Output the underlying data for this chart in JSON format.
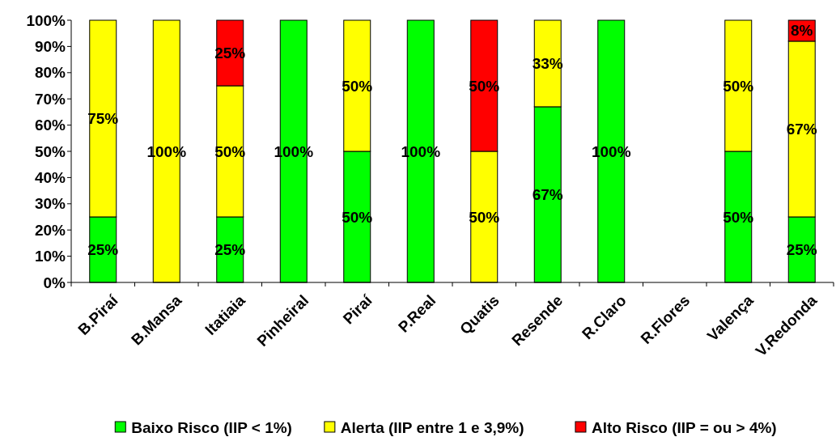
{
  "chart_data": {
    "type": "bar",
    "stacked": true,
    "categories": [
      "B.Piraí",
      "B.Mansa",
      "Itatiaia",
      "Pinheiral",
      "Piraí",
      "P.Real",
      "Quatis",
      "Resende",
      "R.Claro",
      "R.Flores",
      "Valença",
      "V.Redonda"
    ],
    "series": [
      {
        "name": "Baixo Risco (IIP < 1%)",
        "color": "#00ff00",
        "values": [
          25,
          0,
          25,
          100,
          50,
          100,
          0,
          67,
          100,
          0,
          50,
          25
        ],
        "value_labels": [
          "25%",
          null,
          "25%",
          "100%",
          "50%",
          "100%",
          null,
          "67%",
          "100%",
          null,
          "50%",
          "25%"
        ]
      },
      {
        "name": "Alerta (IIP entre 1 e 3,9%)",
        "color": "#ffff00",
        "values": [
          75,
          100,
          50,
          0,
          50,
          0,
          50,
          33,
          0,
          0,
          50,
          67
        ],
        "value_labels": [
          "75%",
          "100%",
          "50%",
          null,
          "50%",
          null,
          "50%",
          "33%",
          null,
          null,
          "50%",
          "67%"
        ]
      },
      {
        "name": "Alto Risco (IIP = ou > 4%)",
        "color": "#ff0000",
        "values": [
          0,
          0,
          25,
          0,
          0,
          0,
          50,
          0,
          0,
          0,
          0,
          8
        ],
        "value_labels": [
          null,
          null,
          "25%",
          null,
          null,
          null,
          "50%",
          null,
          null,
          null,
          null,
          "8%"
        ]
      }
    ],
    "ylim": [
      0,
      100
    ],
    "yticks": [
      {
        "value": 0,
        "label": "0%"
      },
      {
        "value": 10,
        "label": "10%"
      },
      {
        "value": 20,
        "label": "20%"
      },
      {
        "value": 30,
        "label": "30%"
      },
      {
        "value": 40,
        "label": "40%"
      },
      {
        "value": 50,
        "label": "50%"
      },
      {
        "value": 60,
        "label": "60%"
      },
      {
        "value": 70,
        "label": "70%"
      },
      {
        "value": 80,
        "label": "80%"
      },
      {
        "value": 90,
        "label": "90%"
      },
      {
        "value": 100,
        "label": "100%"
      }
    ],
    "legend": "bottom"
  }
}
